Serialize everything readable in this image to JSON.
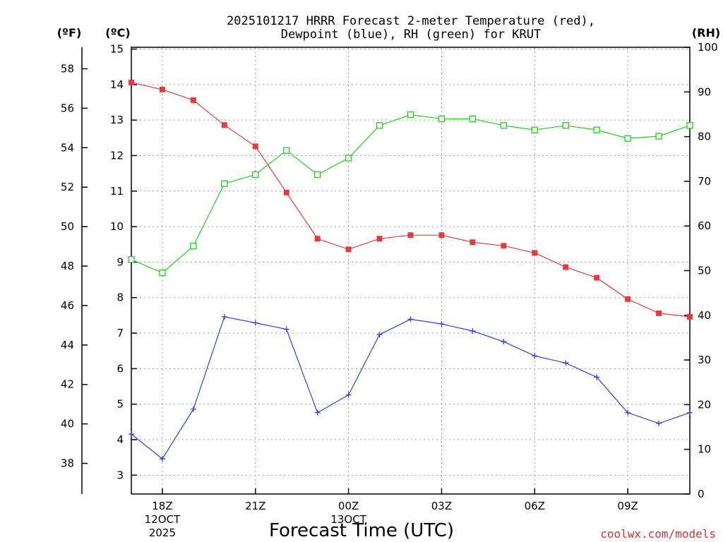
{
  "chart_data": {
    "type": "line",
    "title_line1": "2025101217 HRRR Forecast 2-meter Temperature (red),",
    "title_line2": "Dewpoint (blue), RH (green) for KRUT",
    "units": {
      "fahrenheit": "(ºF)",
      "celsius": "(ºC)",
      "rh": "(RH)"
    },
    "xlabel": "Forecast Time (UTC)",
    "credit": "coolwx.com/models",
    "hours": [
      17,
      18,
      19,
      20,
      21,
      22,
      23,
      24,
      25,
      26,
      27,
      28,
      29,
      30,
      31,
      32,
      33,
      34,
      35
    ],
    "xlim": [
      17,
      35
    ],
    "x_ticks": [
      {
        "hour": 18,
        "line1": "18Z",
        "line2": "12OCT",
        "line3": "2025"
      },
      {
        "hour": 21,
        "line1": "21Z"
      },
      {
        "hour": 24,
        "line1": "00Z",
        "line2": "13OCT"
      },
      {
        "hour": 27,
        "line1": "03Z"
      },
      {
        "hour": 30,
        "line1": "06Z"
      },
      {
        "hour": 33,
        "line1": "09Z"
      }
    ],
    "celsius_range": [
      2.47,
      15.05
    ],
    "celsius_ticks": [
      3,
      4,
      5,
      6,
      7,
      8,
      9,
      10,
      11,
      12,
      13,
      14,
      15
    ],
    "fahrenheit_ticks": [
      38,
      40,
      42,
      44,
      46,
      48,
      50,
      52,
      54,
      56,
      58
    ],
    "rh_range": [
      0,
      100
    ],
    "rh_ticks": [
      0,
      10,
      20,
      30,
      40,
      50,
      60,
      70,
      80,
      90,
      100
    ],
    "series": [
      {
        "name": "Temperature",
        "axis": "celsius",
        "color": "#e8393f",
        "marker": "filled-square",
        "values": [
          14.06,
          13.86,
          13.56,
          12.86,
          12.26,
          10.96,
          9.66,
          9.36,
          9.66,
          9.76,
          9.76,
          9.56,
          9.46,
          9.26,
          8.86,
          8.56,
          7.96,
          7.56,
          7.46
        ]
      },
      {
        "name": "Dewpoint",
        "axis": "celsius",
        "color": "#2d41e0",
        "marker": "plus",
        "values": [
          4.16,
          3.46,
          4.86,
          7.46,
          7.29,
          7.11,
          4.76,
          5.26,
          6.96,
          7.39,
          7.26,
          7.06,
          6.76,
          6.36,
          6.16,
          5.76,
          4.76,
          4.46,
          4.76
        ]
      },
      {
        "name": "RH",
        "axis": "rh",
        "color": "#20d020",
        "marker": "open-square",
        "values": [
          52.5,
          49.5,
          55.5,
          69.5,
          71.5,
          76.9,
          71.5,
          75.2,
          82.5,
          84.9,
          84.0,
          84.0,
          82.5,
          81.5,
          82.5,
          81.5,
          79.6,
          80.1,
          82.5
        ]
      }
    ]
  }
}
